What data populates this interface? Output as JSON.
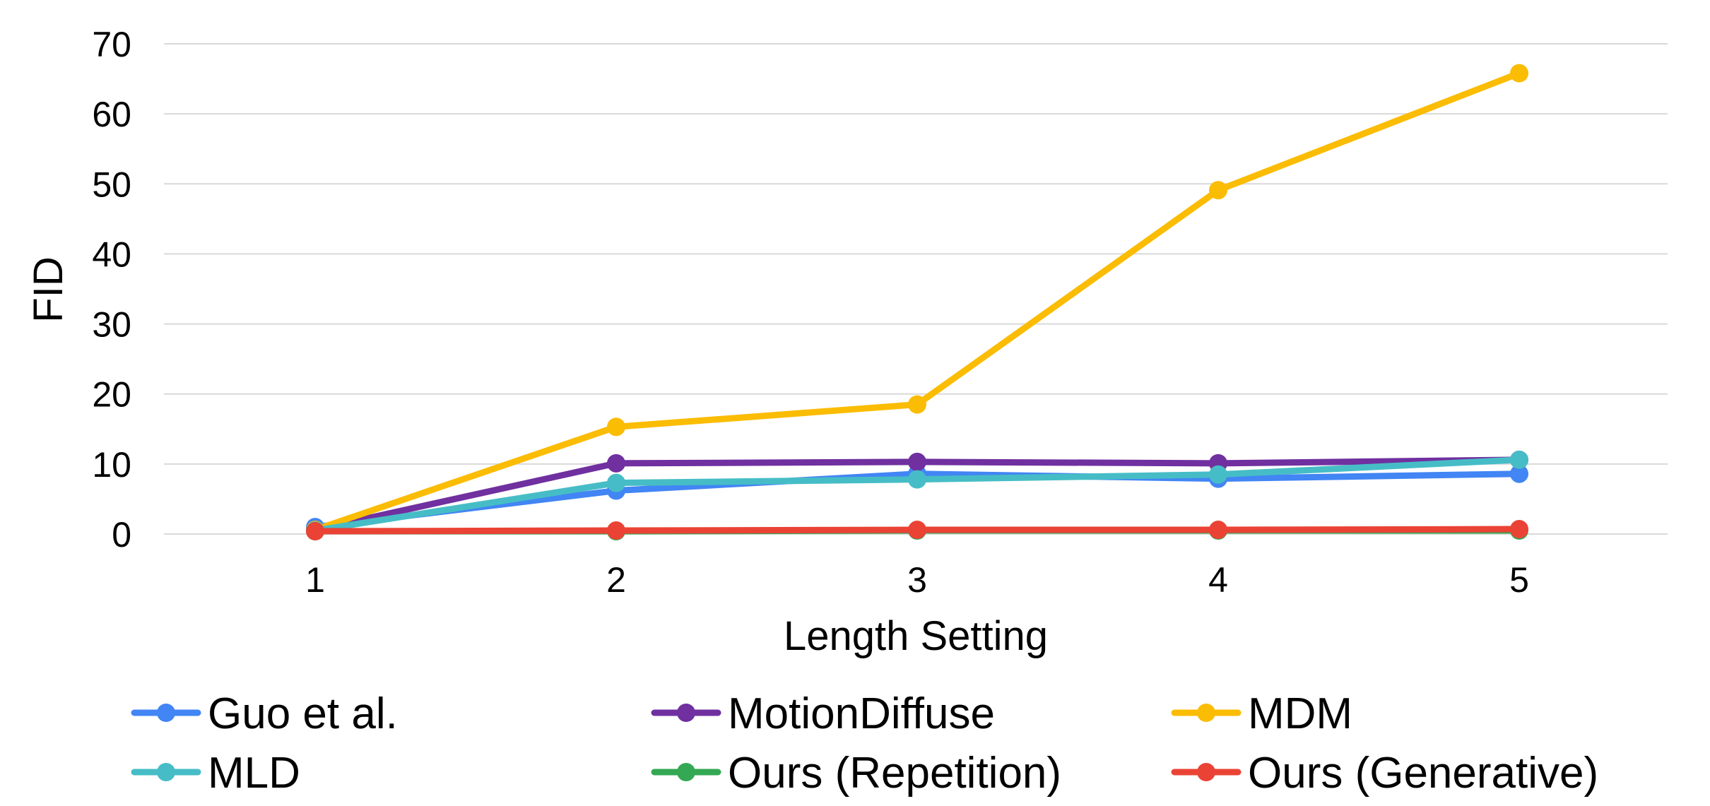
{
  "chart_data": {
    "type": "line",
    "title": "",
    "xlabel": "Length Setting",
    "ylabel": "FID",
    "x": [
      1,
      2,
      3,
      4,
      5
    ],
    "ylim": [
      0,
      70
    ],
    "y_ticks": [
      0,
      10,
      20,
      30,
      40,
      50,
      60,
      70
    ],
    "grid": "horizontal",
    "legend_position": "bottom",
    "series": [
      {
        "name": "Guo et al.",
        "color": "#4285F4",
        "values": [
          1.0,
          6.2,
          8.6,
          7.9,
          8.6
        ]
      },
      {
        "name": "MotionDiffuse",
        "color": "#7030A0",
        "values": [
          0.6,
          10.1,
          10.3,
          10.1,
          10.6
        ]
      },
      {
        "name": "MDM",
        "color": "#FBBC04",
        "values": [
          0.6,
          15.3,
          18.5,
          49.1,
          65.8
        ]
      },
      {
        "name": "MLD",
        "color": "#46BDC6",
        "values": [
          0.5,
          7.3,
          7.8,
          8.5,
          10.6
        ]
      },
      {
        "name": "Ours (Repetition)",
        "color": "#34A853",
        "values": [
          0.4,
          0.4,
          0.5,
          0.5,
          0.5
        ]
      },
      {
        "name": "Ours (Generative)",
        "color": "#EA4335",
        "values": [
          0.4,
          0.5,
          0.6,
          0.6,
          0.7
        ]
      }
    ]
  }
}
